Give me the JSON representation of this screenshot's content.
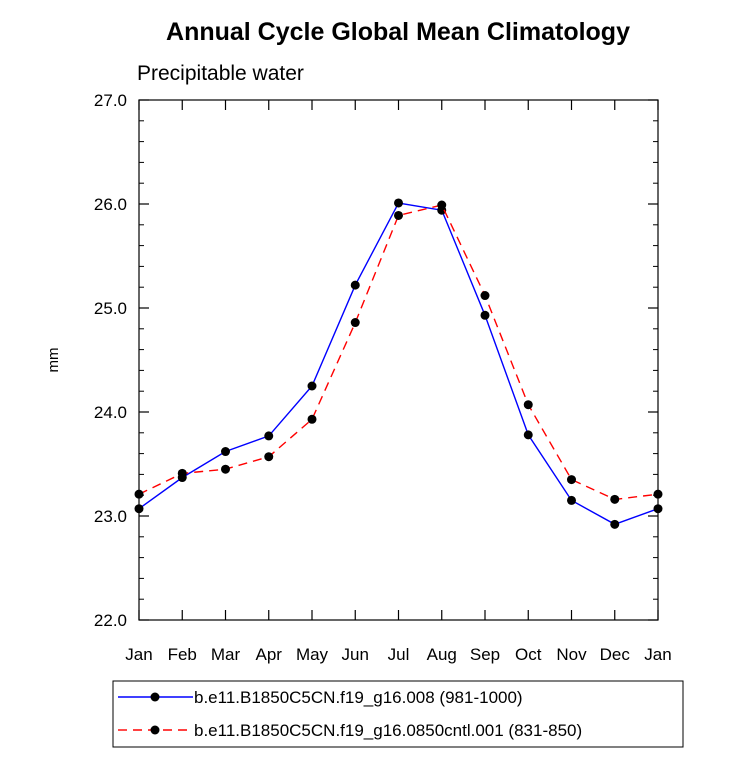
{
  "chart_data": {
    "type": "line",
    "title": "Annual Cycle Global Mean Climatology",
    "subtitle": "Precipitable water",
    "ylabel": "mm",
    "xlabel": "",
    "categories": [
      "Jan",
      "Feb",
      "Mar",
      "Apr",
      "May",
      "Jun",
      "Jul",
      "Aug",
      "Sep",
      "Oct",
      "Nov",
      "Dec",
      "Jan"
    ],
    "ylim": [
      22.0,
      27.0
    ],
    "yticks": [
      "22.0",
      "23.0",
      "24.0",
      "25.0",
      "26.0",
      "27.0"
    ],
    "grid": false,
    "legend_position": "bottom",
    "series": [
      {
        "name": "b.e11.B1850C5CN.f19_g16.008 (981-1000)",
        "color": "#0000ff",
        "style": "solid",
        "marker": "filled-circle",
        "values": [
          23.07,
          23.37,
          23.62,
          23.77,
          24.25,
          25.22,
          26.01,
          25.94,
          24.93,
          23.78,
          23.15,
          22.92,
          23.07
        ]
      },
      {
        "name": "b.e11.B1850C5CN.f19_g16.0850cntl.001 (831-850)",
        "color": "#ff0000",
        "style": "dashed",
        "marker": "filled-circle",
        "values": [
          23.21,
          23.41,
          23.45,
          23.57,
          23.93,
          24.86,
          25.89,
          25.99,
          25.12,
          24.07,
          23.35,
          23.16,
          23.21
        ]
      }
    ]
  }
}
